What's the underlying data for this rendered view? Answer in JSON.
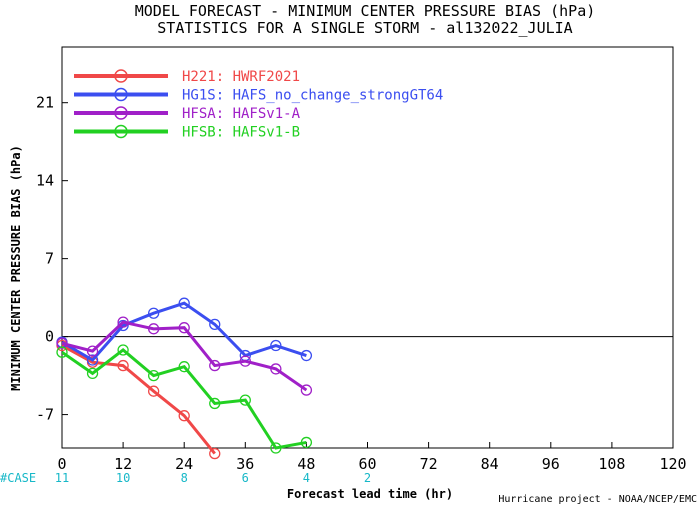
{
  "title": {
    "line1": "MODEL FORECAST - MINIMUM CENTER PRESSURE BIAS (hPa)",
    "line2": "STATISTICS FOR A SINGLE STORM - al132022_JULIA"
  },
  "footer": {
    "case_label": "#CASE",
    "credit": "Hurricane project - NOAA/NCEP/EMC"
  },
  "chart_data": {
    "type": "line",
    "xlabel": "Forecast lead time (hr)",
    "ylabel": "MINIMUM CENTER PRESSURE BIAS (hPa)",
    "xlim": [
      0,
      120
    ],
    "ylim": [
      -10,
      26
    ],
    "xticks": [
      0,
      12,
      24,
      36,
      48,
      60,
      72,
      84,
      96,
      108,
      120
    ],
    "yticks": [
      -7,
      0,
      7,
      14,
      21
    ],
    "grid": false,
    "zero_line": true,
    "legend_position": "top-left",
    "case_counts": [
      {
        "x": 0,
        "n": "11"
      },
      {
        "x": 12,
        "n": "10"
      },
      {
        "x": 24,
        "n": "8"
      },
      {
        "x": 36,
        "n": "6"
      },
      {
        "x": 48,
        "n": "4"
      },
      {
        "x": 60,
        "n": "2"
      }
    ],
    "series": [
      {
        "name": "H221: HWRF2021",
        "color": "#f04848",
        "x": [
          0,
          6,
          12,
          18,
          24,
          30
        ],
        "y": [
          -0.8,
          -2.3,
          -2.6,
          -4.9,
          -7.1,
          -10.5
        ]
      },
      {
        "name": "HG1S: HAFS_no_change_strongGT64",
        "color": "#3b4ef0",
        "x": [
          0,
          6,
          12,
          18,
          24,
          30,
          36,
          42,
          48
        ],
        "y": [
          -0.5,
          -2.1,
          1.0,
          2.1,
          3.0,
          1.1,
          -1.7,
          -0.8,
          -1.7
        ]
      },
      {
        "name": "HFSA: HAFSv1-A",
        "color": "#a020c8",
        "x": [
          0,
          6,
          12,
          18,
          24,
          30,
          36,
          42,
          48
        ],
        "y": [
          -0.6,
          -1.3,
          1.3,
          0.7,
          0.8,
          -2.6,
          -2.2,
          -2.9,
          -4.8
        ]
      },
      {
        "name": "HFSB: HAFSv1-B",
        "color": "#22d022",
        "x": [
          0,
          6,
          12,
          18,
          24,
          30,
          36,
          42,
          48
        ],
        "y": [
          -1.4,
          -3.3,
          -1.2,
          -3.5,
          -2.7,
          -6.0,
          -5.7,
          -10.0,
          -9.5
        ]
      }
    ]
  }
}
